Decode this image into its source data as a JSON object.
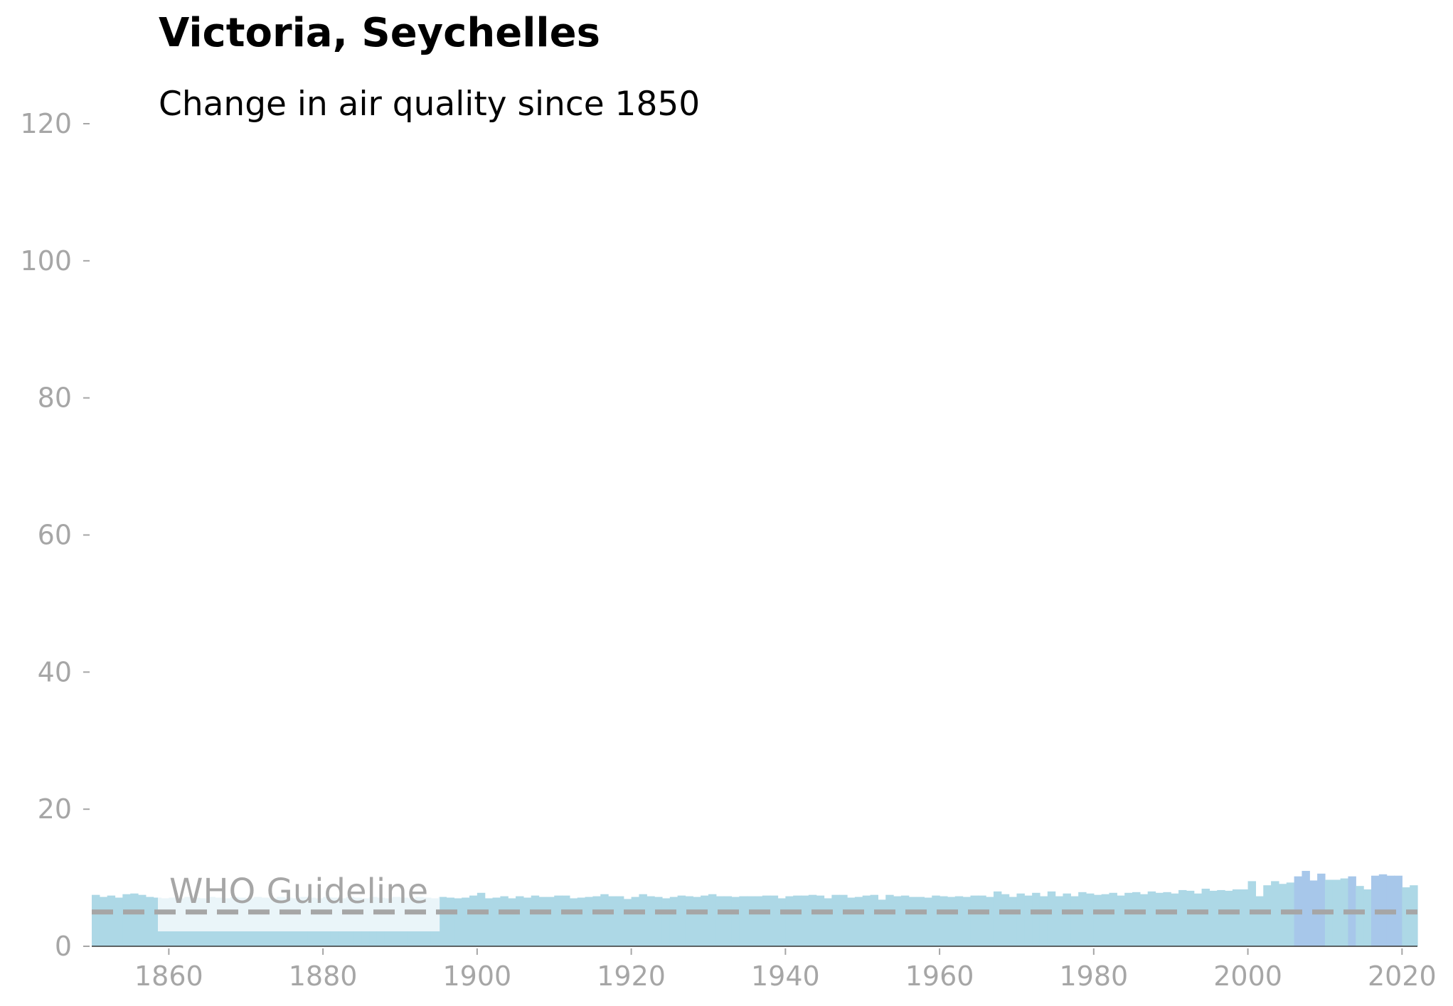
{
  "chart_data": {
    "type": "bar",
    "title": "Victoria, Seychelles",
    "subtitle": "Change in air quality since 1850",
    "xlabel": "",
    "ylabel": "",
    "xlim": [
      1850,
      2022
    ],
    "ylim": [
      0,
      120
    ],
    "x_ticks": [
      1860,
      1880,
      1900,
      1920,
      1940,
      1960,
      1980,
      2000,
      2020
    ],
    "y_ticks": [
      0,
      20,
      40,
      60,
      80,
      100,
      120
    ],
    "grid": false,
    "years": [
      1850,
      1851,
      1852,
      1853,
      1854,
      1855,
      1856,
      1857,
      1858,
      1859,
      1860,
      1861,
      1862,
      1863,
      1864,
      1865,
      1866,
      1867,
      1868,
      1869,
      1870,
      1871,
      1872,
      1873,
      1874,
      1875,
      1876,
      1877,
      1878,
      1879,
      1880,
      1881,
      1882,
      1883,
      1884,
      1885,
      1886,
      1887,
      1888,
      1889,
      1890,
      1891,
      1892,
      1893,
      1894,
      1895,
      1896,
      1897,
      1898,
      1899,
      1900,
      1901,
      1902,
      1903,
      1904,
      1905,
      1906,
      1907,
      1908,
      1909,
      1910,
      1911,
      1912,
      1913,
      1914,
      1915,
      1916,
      1917,
      1918,
      1919,
      1920,
      1921,
      1922,
      1923,
      1924,
      1925,
      1926,
      1927,
      1928,
      1929,
      1930,
      1931,
      1932,
      1933,
      1934,
      1935,
      1936,
      1937,
      1938,
      1939,
      1940,
      1941,
      1942,
      1943,
      1944,
      1945,
      1946,
      1947,
      1948,
      1949,
      1950,
      1951,
      1952,
      1953,
      1954,
      1955,
      1956,
      1957,
      1958,
      1959,
      1960,
      1961,
      1962,
      1963,
      1964,
      1965,
      1966,
      1967,
      1968,
      1969,
      1970,
      1971,
      1972,
      1973,
      1974,
      1975,
      1976,
      1977,
      1978,
      1979,
      1980,
      1981,
      1982,
      1983,
      1984,
      1985,
      1986,
      1987,
      1988,
      1989,
      1990,
      1991,
      1992,
      1993,
      1994,
      1995,
      1996,
      1997,
      1998,
      1999,
      2000,
      2001,
      2002,
      2003,
      2004,
      2005,
      2006,
      2007,
      2008,
      2009,
      2010,
      2011,
      2012,
      2013,
      2014,
      2015,
      2016,
      2017,
      2018,
      2019,
      2020,
      2021
    ],
    "values": [
      7.5,
      7.2,
      7.4,
      7.1,
      7.6,
      7.7,
      7.5,
      7.2,
      7.1,
      7.0,
      7.1,
      7.0,
      7.2,
      7.1,
      7.0,
      7.2,
      7.1,
      7.0,
      7.2,
      7.1,
      7.0,
      7.2,
      7.1,
      7.0,
      7.2,
      7.1,
      7.0,
      7.2,
      7.1,
      7.0,
      7.2,
      7.1,
      7.0,
      7.2,
      7.1,
      7.0,
      7.2,
      7.1,
      7.0,
      7.2,
      7.1,
      7.0,
      7.2,
      7.1,
      7.0,
      7.2,
      7.1,
      7.0,
      7.1,
      7.4,
      7.8,
      7.0,
      7.1,
      7.3,
      7.0,
      7.3,
      7.1,
      7.4,
      7.2,
      7.2,
      7.4,
      7.4,
      7.0,
      7.1,
      7.2,
      7.3,
      7.6,
      7.3,
      7.3,
      6.9,
      7.2,
      7.6,
      7.3,
      7.2,
      7.0,
      7.2,
      7.4,
      7.3,
      7.2,
      7.4,
      7.6,
      7.3,
      7.3,
      7.2,
      7.3,
      7.3,
      7.3,
      7.4,
      7.4,
      7.0,
      7.3,
      7.4,
      7.4,
      7.5,
      7.4,
      7.0,
      7.5,
      7.5,
      7.1,
      7.2,
      7.4,
      7.5,
      6.8,
      7.5,
      7.3,
      7.4,
      7.2,
      7.2,
      7.1,
      7.4,
      7.3,
      7.2,
      7.3,
      7.2,
      7.4,
      7.4,
      7.2,
      8.0,
      7.6,
      7.2,
      7.7,
      7.4,
      7.8,
      7.3,
      8.0,
      7.3,
      7.7,
      7.3,
      7.9,
      7.7,
      7.5,
      7.6,
      7.8,
      7.4,
      7.8,
      7.9,
      7.6,
      8.0,
      7.8,
      7.9,
      7.7,
      8.2,
      8.1,
      7.7,
      8.4,
      8.1,
      8.2,
      8.1,
      8.3,
      8.3,
      9.5,
      7.3,
      8.9,
      9.5,
      9.1,
      9.3,
      10.2,
      11.0,
      9.6,
      10.6,
      9.7,
      9.7,
      9.9,
      10.2,
      8.8,
      8.3,
      10.3,
      10.5,
      10.3,
      10.3,
      8.6,
      8.9
    ],
    "highlight_years": [
      2006,
      2007,
      2008,
      2009,
      2013,
      2016,
      2017,
      2018,
      2019
    ],
    "reference_line": {
      "label": "WHO Guideline",
      "value": 5
    },
    "colors": {
      "bar": "#add8e6",
      "bar_highlight": "#a7c7ea",
      "guideline": "#a6a6a6",
      "axis_text": "#a6a6a6",
      "title": "#000000"
    }
  }
}
